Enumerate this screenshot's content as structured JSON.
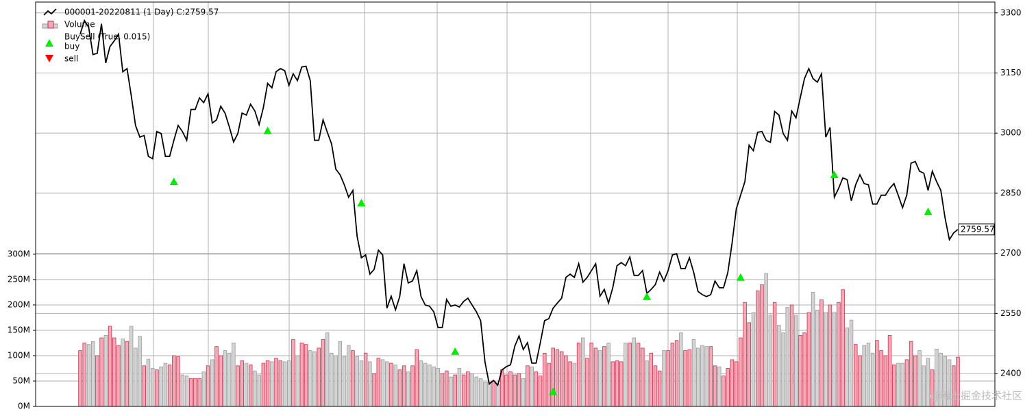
{
  "chart_data": {
    "type": "line",
    "series": [
      {
        "name": "000001-20220811 (1 Day) C:2759.57",
        "color": "#000000",
        "axis": "y2",
        "values": [
          3247,
          3281,
          3264,
          3196,
          3199,
          3273,
          3175,
          3216,
          3230,
          3247,
          3153,
          3161,
          3093,
          3019,
          2990,
          2994,
          2942,
          2936,
          3004,
          2999,
          2942,
          2942,
          2982,
          3019,
          3004,
          2982,
          3059,
          3059,
          3088,
          3076,
          3098,
          3025,
          3033,
          3067,
          3050,
          3016,
          2978,
          2999,
          3050,
          3045,
          3072,
          3055,
          3021,
          3064,
          3124,
          3113,
          3153,
          3161,
          3156,
          3119,
          3148,
          3131,
          3165,
          3167,
          3131,
          2982,
          2982,
          3033,
          3002,
          2973,
          2910,
          2896,
          2871,
          2840,
          2857,
          2742,
          2689,
          2696,
          2648,
          2660,
          2708,
          2696,
          2563,
          2593,
          2559,
          2592,
          2674,
          2626,
          2631,
          2657,
          2592,
          2571,
          2568,
          2554,
          2515,
          2515,
          2585,
          2568,
          2571,
          2566,
          2580,
          2588,
          2571,
          2554,
          2532,
          2429,
          2374,
          2383,
          2371,
          2409,
          2417,
          2422,
          2468,
          2494,
          2460,
          2477,
          2426,
          2426,
          2477,
          2532,
          2537,
          2563,
          2576,
          2588,
          2640,
          2648,
          2640,
          2674,
          2628,
          2640,
          2657,
          2674,
          2593,
          2610,
          2576,
          2614,
          2669,
          2677,
          2669,
          2691,
          2645,
          2645,
          2657,
          2600,
          2610,
          2622,
          2653,
          2631,
          2657,
          2696,
          2699,
          2662,
          2662,
          2689,
          2652,
          2605,
          2597,
          2592,
          2597,
          2631,
          2614,
          2614,
          2652,
          2725,
          2811,
          2845,
          2879,
          2970,
          2956,
          3002,
          3004,
          2982,
          2977,
          3054,
          3045,
          2999,
          2982,
          3055,
          3038,
          3088,
          3136,
          3161,
          3136,
          3127,
          3148,
          2990,
          3014,
          2840,
          2862,
          2888,
          2884,
          2831,
          2871,
          2896,
          2874,
          2871,
          2823,
          2823,
          2845,
          2845,
          2862,
          2874,
          2845,
          2814,
          2845,
          2925,
          2929,
          2905,
          2900,
          2857,
          2905,
          2879,
          2857,
          2788,
          2734,
          2751,
          2759.57
        ]
      },
      {
        "name": "Volume",
        "type": "bar",
        "color": "#f4a9b8",
        "down_color": "#d3d3d3",
        "values": [
          110,
          125,
          122,
          128,
          100,
          135,
          140,
          158,
          135,
          120,
          133,
          128,
          158,
          115,
          138,
          80,
          93,
          75,
          72,
          78,
          85,
          82,
          100,
          98,
          62,
          60,
          55,
          55,
          55,
          68,
          80,
          92,
          118,
          100,
          110,
          105,
          125,
          80,
          90,
          85,
          82,
          70,
          62,
          85,
          90,
          88,
          95,
          90,
          88,
          90,
          132,
          100,
          125,
          122,
          110,
          108,
          115,
          132,
          145,
          105,
          100,
          128,
          98,
          120,
          110,
          98,
          90,
          105,
          88,
          65,
          95,
          92,
          88,
          85,
          82,
          72,
          80,
          68,
          80,
          112,
          90,
          85,
          82,
          78,
          75,
          65,
          70,
          58,
          62,
          75,
          62,
          68,
          65,
          58,
          55,
          48,
          48,
          50,
          44,
          72,
          62,
          68,
          62,
          65,
          55,
          80,
          78,
          68,
          60,
          105,
          85,
          115,
          112,
          108,
          100,
          88,
          85,
          125,
          135,
          95,
          125,
          115,
          110,
          118,
          125,
          88,
          90,
          88,
          125,
          125,
          135,
          125,
          115,
          90,
          105,
          80,
          70,
          110,
          110,
          125,
          130,
          145,
          110,
          112,
          132,
          115,
          120,
          118,
          118,
          80,
          78,
          60,
          75,
          92,
          88,
          135,
          205,
          165,
          185,
          228,
          240,
          262,
          180,
          205,
          160,
          145,
          195,
          200,
          180,
          140,
          145,
          185,
          225,
          190,
          210,
          185,
          200,
          185,
          205,
          230,
          155,
          170,
          122,
          100,
          120,
          125,
          105,
          130,
          110,
          100,
          140,
          82,
          85,
          85,
          92,
          128,
          100,
          110,
          80,
          95,
          72,
          113,
          105,
          98,
          92,
          80,
          97
        ]
      },
      {
        "name": "buy",
        "type": "scatter",
        "color": "#00ee00",
        "axis": "y2",
        "x": [
          22,
          44,
          66,
          88,
          111,
          133,
          155,
          177,
          199
        ],
        "values": [
          2879,
          3006,
          2826,
          2455,
          2355,
          2592,
          2640,
          2896,
          2804
        ]
      },
      {
        "name": "sell",
        "type": "scatter",
        "color": "#ff0000",
        "axis": "y2",
        "x": [],
        "values": []
      }
    ],
    "indicator": "BuySell (True, 0.015)",
    "ylim": [
      0,
      797
    ],
    "yticks": [
      {
        "value": 0,
        "label": "0M"
      },
      {
        "value": 50,
        "label": "50M"
      },
      {
        "value": 100,
        "label": "100M"
      },
      {
        "value": 150,
        "label": "150M"
      },
      {
        "value": 200,
        "label": "200M"
      },
      {
        "value": 250,
        "label": "250M"
      },
      {
        "value": 300,
        "label": "300M"
      }
    ],
    "y2lim": [
      2318,
      3327
    ],
    "y2ticks": [
      2400,
      2550,
      2700,
      2850,
      3000,
      3150,
      3300
    ],
    "grid": true,
    "watermark": "@稀土掘金技术社区"
  }
}
